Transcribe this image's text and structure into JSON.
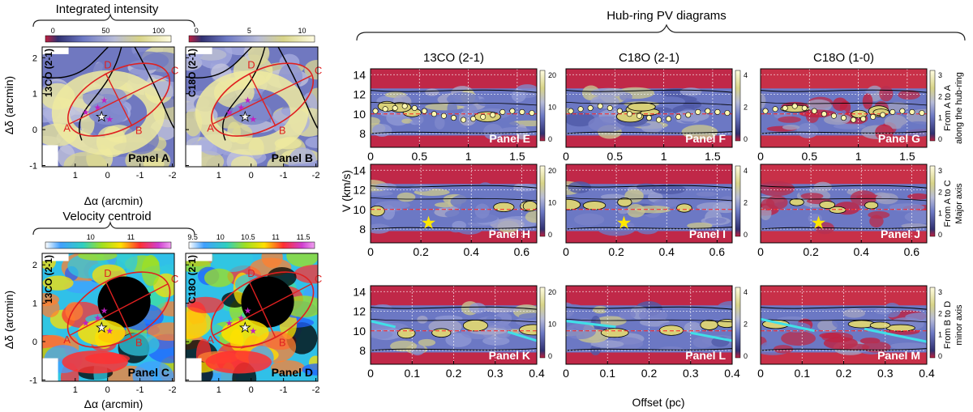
{
  "titles": {
    "left_top": "Integrated intensity",
    "left_bottom": "Velocity centroid",
    "right": "Hub-ring PV diagrams"
  },
  "axes": {
    "dec": "Δδ (arcmin)",
    "ra": "Δα (arcmin)",
    "velocity": "V (km/s)",
    "offset": "Offset (pc)"
  },
  "columns": [
    "13CO (2-1)",
    "C18O (2-1)",
    "C18O (1-0)"
  ],
  "rows": [
    {
      "line1": "From A to A",
      "line2": "along the hub-ring"
    },
    {
      "line1": "From A to C",
      "line2": "Major axis"
    },
    {
      "line1": "From B to D",
      "line2": "minor axis"
    }
  ],
  "map_panels": [
    {
      "label": "Panel A",
      "tracer": "13CO (2-1)",
      "cbar_ticks": [
        "0",
        "50",
        "100"
      ]
    },
    {
      "label": "Panel B",
      "tracer": "C18O (2-1)",
      "cbar_ticks": [
        "0",
        "5",
        "10"
      ]
    },
    {
      "label": "Panel C",
      "tracer": "13CO (2-1)",
      "cbar_ticks": [
        "10",
        "11"
      ]
    },
    {
      "label": "Panel D",
      "tracer": "C18O (2-1)",
      "cbar_ticks": [
        "9.5",
        "10",
        "10.5",
        "11",
        "11.5"
      ]
    }
  ],
  "map_ticks": {
    "dec": [
      "2",
      "1",
      "0",
      "-1"
    ],
    "ra": [
      "1",
      "0",
      "-1",
      "-2"
    ]
  },
  "map_point_labels": [
    "A",
    "B",
    "C",
    "D"
  ],
  "pv_panels": [
    {
      "label": "Panel E",
      "xmax": 1.7,
      "xticks": [
        "0",
        "0.5",
        "1",
        "1.5"
      ],
      "cbar": [
        "20",
        "10",
        "0"
      ]
    },
    {
      "label": "Panel F",
      "xmax": 1.7,
      "xticks": [
        "0",
        "0.5",
        "1",
        "1.5"
      ],
      "cbar": [
        "4",
        "2",
        "0"
      ]
    },
    {
      "label": "Panel G",
      "xmax": 1.7,
      "xticks": [
        "0",
        "0.5",
        "1",
        "1.5"
      ],
      "cbar": [
        "3",
        "2",
        "1",
        "0"
      ]
    },
    {
      "label": "Panel H",
      "xmax": 0.66,
      "xticks": [
        "0",
        "0.2",
        "0.4",
        "0.6"
      ],
      "cbar": [
        "20",
        "10",
        "0"
      ]
    },
    {
      "label": "Panel I",
      "xmax": 0.66,
      "xticks": [
        "0",
        "0.2",
        "0.4",
        "0.6"
      ],
      "cbar": [
        "4",
        "2",
        "0"
      ]
    },
    {
      "label": "Panel J",
      "xmax": 0.66,
      "xticks": [
        "0",
        "0.2",
        "0.4",
        "0.6"
      ],
      "cbar": [
        "3",
        "2",
        "1",
        "0"
      ]
    },
    {
      "label": "Panel K",
      "xmax": 0.4,
      "xticks": [
        "0",
        "0.1",
        "0.2",
        "0.3",
        "0.4"
      ],
      "cbar": [
        "20",
        "10",
        "0"
      ]
    },
    {
      "label": "Panel L",
      "xmax": 0.4,
      "xticks": [
        "0",
        "0.1",
        "0.2",
        "0.3",
        "0.4"
      ],
      "cbar": [
        "4",
        "2",
        "0"
      ]
    },
    {
      "label": "Panel M",
      "xmax": 0.4,
      "xticks": [
        "0",
        "0.1",
        "0.2",
        "0.3",
        "0.4"
      ],
      "cbar": [
        "3",
        "2",
        "1",
        "0"
      ]
    }
  ],
  "pv_yticks": [
    "14",
    "12",
    "10",
    "8"
  ],
  "chart_data": {
    "type": "heatmap",
    "title": "Hub-ring PV diagrams",
    "xlabel": "Offset (pc)",
    "ylabel": "V (km/s)",
    "ylim": [
      6.6,
      14.6
    ],
    "systemic_velocity_kms": 10,
    "row_xlim": [
      [
        0,
        1.7
      ],
      [
        0,
        0.66
      ],
      [
        0,
        0.4
      ]
    ],
    "hub_ring_peak_velocity": {
      "offset_pc": [
        0.05,
        0.15,
        0.25,
        0.35,
        0.45,
        0.55,
        0.65,
        0.75,
        0.85,
        0.95,
        1.05,
        1.15,
        1.25,
        1.35,
        1.45,
        1.55,
        1.65
      ],
      "velocity_kms": [
        10.3,
        10.5,
        10.6,
        10.8,
        10.6,
        10.3,
        10.0,
        9.8,
        9.6,
        9.4,
        9.5,
        9.7,
        9.9,
        10.2,
        10.3,
        10.2,
        10.1
      ]
    },
    "star_positions": [
      {
        "panel": "Panel H",
        "offset_pc": 0.23,
        "velocity_kms": 8.7
      },
      {
        "panel": "Panel I",
        "offset_pc": 0.23,
        "velocity_kms": 8.7
      },
      {
        "panel": "Panel J",
        "offset_pc": 0.23,
        "velocity_kms": 8.7
      }
    ],
    "velocity_gradients": [
      {
        "panel": "Panel K",
        "from": [
          0.0,
          11.0
        ],
        "to": [
          0.06,
          10.4
        ]
      },
      {
        "panel": "Panel K",
        "from": [
          0.33,
          9.9
        ],
        "to": [
          0.4,
          9.0
        ]
      },
      {
        "panel": "Panel L",
        "from": [
          0.0,
          11.0
        ],
        "to": [
          0.12,
          10.4
        ]
      },
      {
        "panel": "Panel L",
        "from": [
          0.3,
          9.8
        ],
        "to": [
          0.4,
          9.0
        ]
      },
      {
        "panel": "Panel M",
        "from": [
          0.0,
          11.2
        ],
        "to": [
          0.13,
          10.0
        ]
      },
      {
        "panel": "Panel M",
        "from": [
          0.25,
          10.2
        ],
        "to": [
          0.4,
          8.9
        ]
      }
    ]
  }
}
